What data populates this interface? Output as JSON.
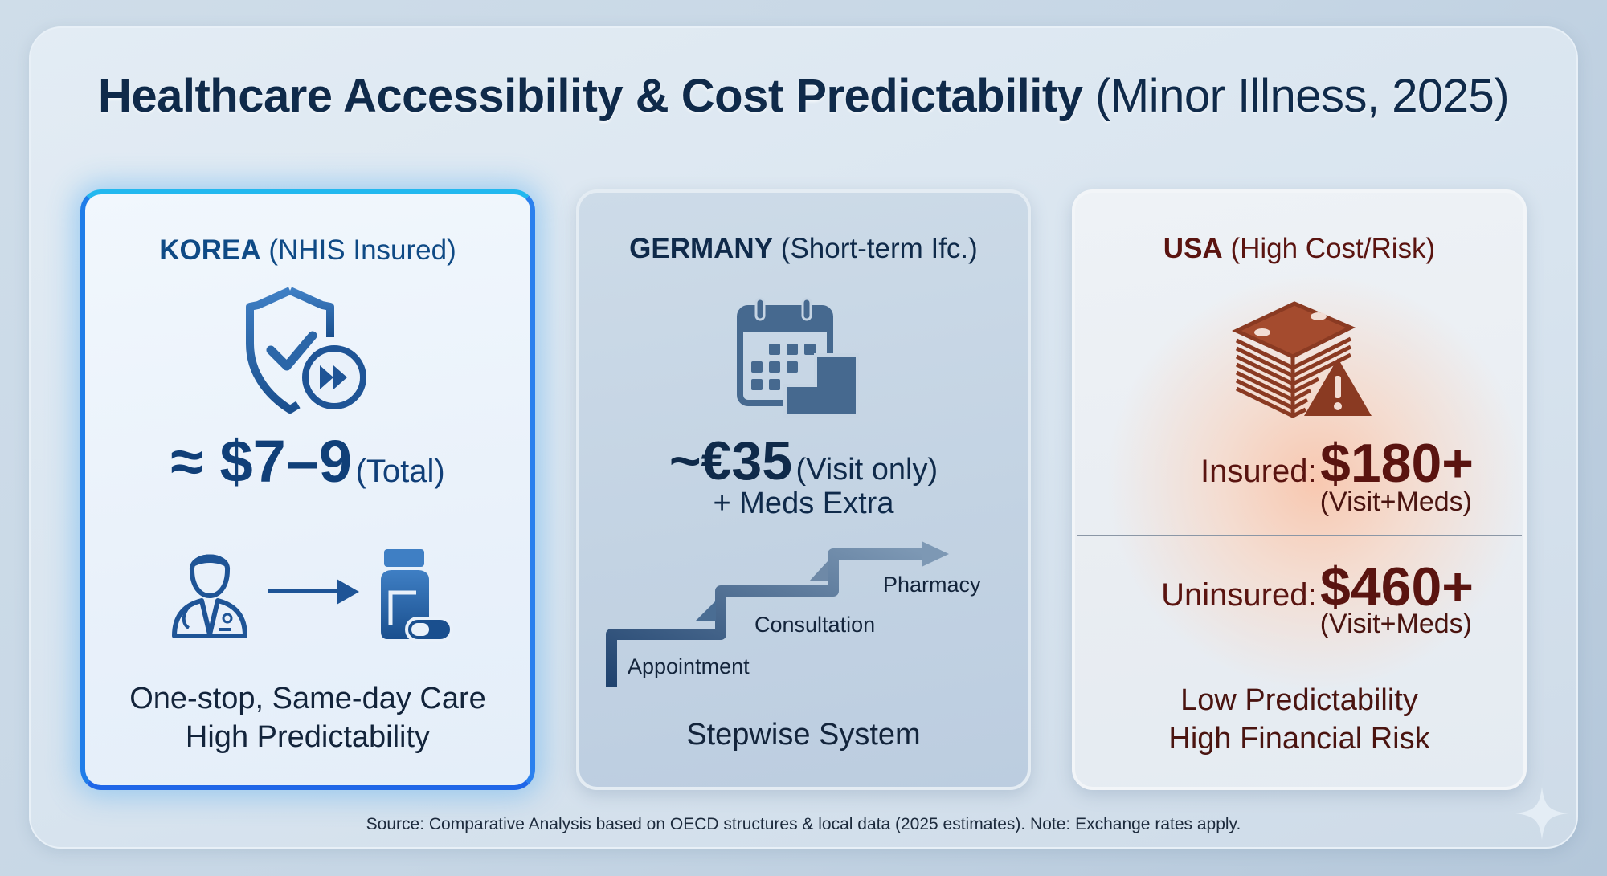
{
  "title": {
    "bold": "Healthcare Accessibility & Cost Predictability",
    "light": "(Minor Illness, 2025)"
  },
  "cards": {
    "korea": {
      "country": "KOREA",
      "qualifier": "(NHIS Insured)",
      "icon": "shield-check-fast-forward-icon",
      "price": "≈ $7–9",
      "price_note": "(Total)",
      "flow_icons": [
        "doctor-icon",
        "arrow-right-icon",
        "medicine-bottle-icon"
      ],
      "desc_line1": "One-stop, Same-day Care",
      "desc_line2": "High Predictability",
      "accent": "#2a8ff0"
    },
    "germany": {
      "country": "GERMANY",
      "qualifier": "(Short-term Ifc.)",
      "icon": "calendar-steps-icon",
      "price": "~€35",
      "price_note": "(Visit only)",
      "meds_note": "+ Meds Extra",
      "steps": [
        "Appointment",
        "Consultation",
        "Pharmacy"
      ],
      "desc": "Stepwise System",
      "accent": "#3f6690"
    },
    "usa": {
      "country": "USA",
      "qualifier": "(High Cost/Risk)",
      "icon": "money-stack-warning-icon",
      "insured_label": "Insured:",
      "insured_price": "$180+",
      "insured_note": "(Visit+Meds)",
      "uninsured_label": "Uninsured:",
      "uninsured_price": "$460+",
      "uninsured_note": "(Visit+Meds)",
      "desc_line1": "Low Predictability",
      "desc_line2": "High Financial Risk",
      "accent": "#9a3a22"
    }
  },
  "footer": "Source: Comparative Analysis based on OECD structures & local data (2025 estimates). Note: Exchange rates apply."
}
